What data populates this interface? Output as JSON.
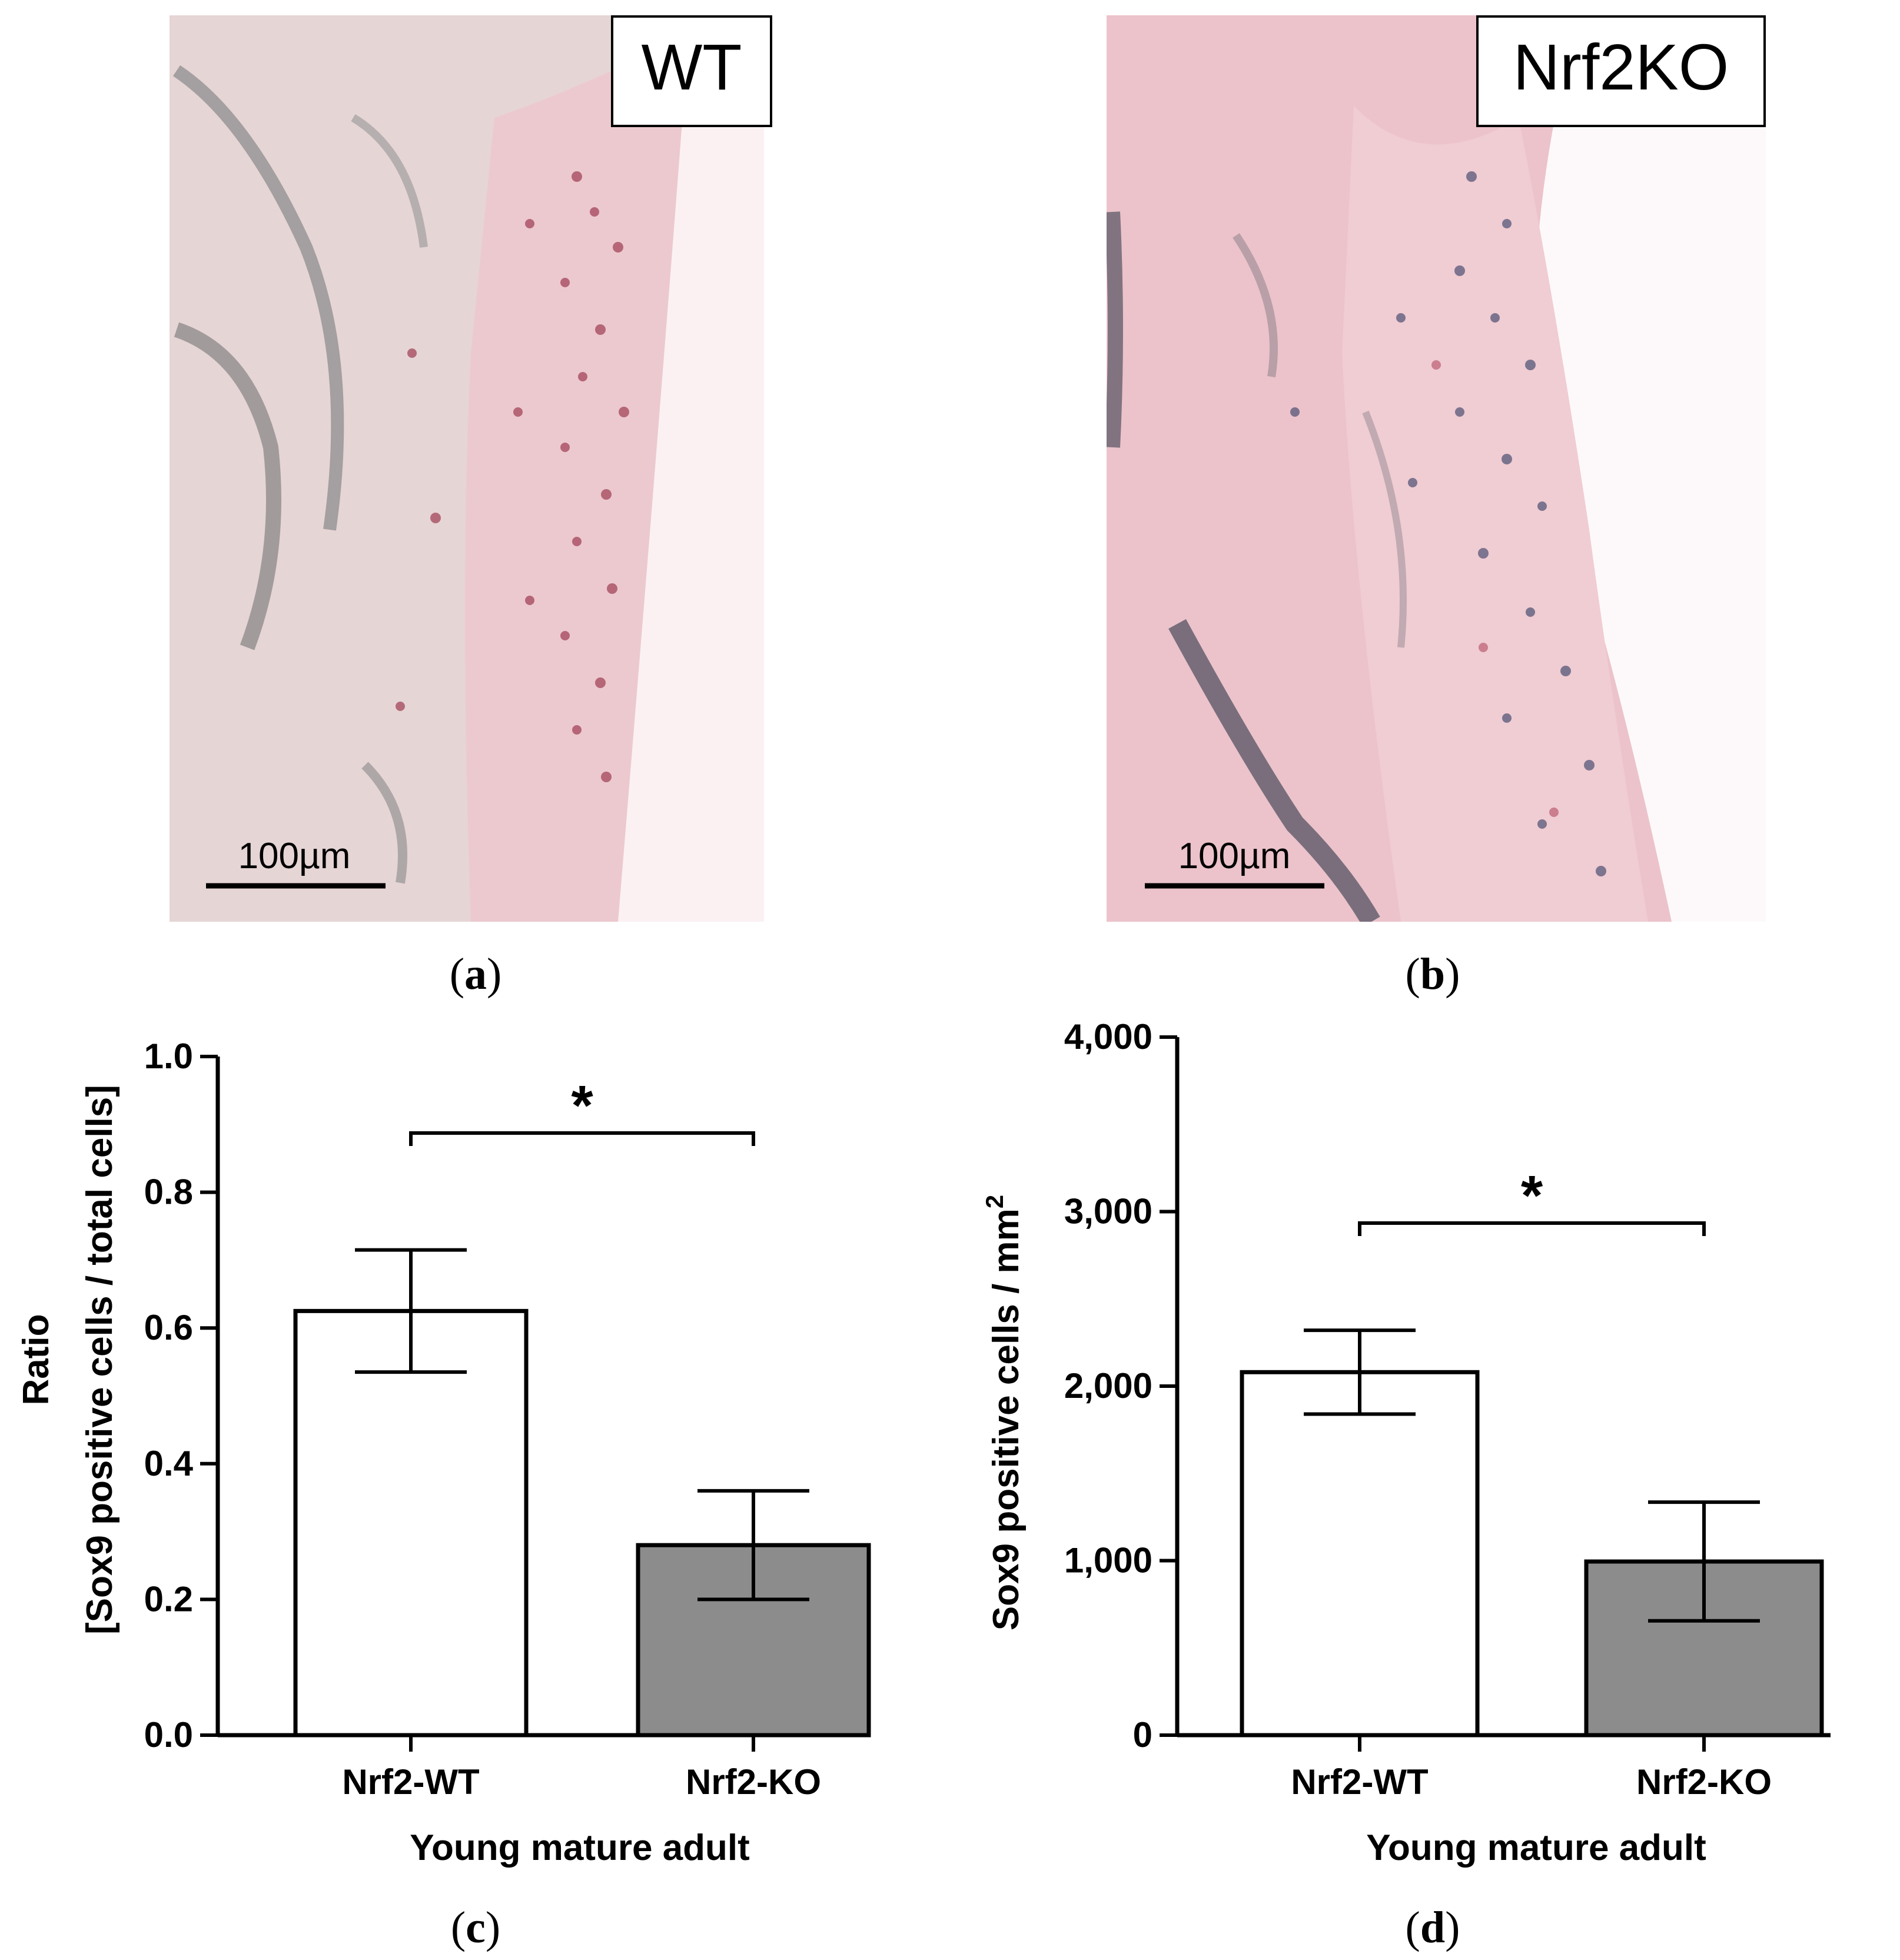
{
  "panels": [
    {
      "letter": "a",
      "badge": "WT",
      "scale_bar": "100µm",
      "image": "histology section stained pink (safranin/hematoxylin), Sox9 immunostaining, wild-type cartilage"
    },
    {
      "letter": "b",
      "badge": "Nrf2KO",
      "scale_bar": "100µm",
      "image": "histology section stained pink (safranin/hematoxylin), Sox9 immunostaining, Nrf2 knockout cartilage"
    }
  ],
  "labels": {
    "c": "c",
    "d": "d"
  },
  "colors": {
    "wt_fill": "#ffffff",
    "ko_fill": "#8c8c8c",
    "stroke": "#000000",
    "tissue": "#ecc3cb"
  },
  "chart_data": [
    {
      "type": "bar",
      "panel": "c",
      "categories": [
        "Nrf2-WT",
        "Nrf2-KO"
      ],
      "values": [
        0.625,
        0.28
      ],
      "errors": [
        0.09,
        0.08
      ],
      "ylim": [
        0,
        1.0
      ],
      "yticks": [
        "0.0",
        "0.2",
        "0.4",
        "0.6",
        "0.8",
        "1.0"
      ],
      "ytick_values": [
        0,
        0.2,
        0.4,
        0.6,
        0.8,
        1.0
      ],
      "ylabel_line1": "Ratio",
      "ylabel_line2": "[Sox9 positive cells / total cells]",
      "xlabel": "Young mature adult",
      "significance": "*"
    },
    {
      "type": "bar",
      "panel": "d",
      "categories": [
        "Nrf2-WT",
        "Nrf2-KO"
      ],
      "values": [
        2080,
        995
      ],
      "errors": [
        240,
        340
      ],
      "ylim": [
        0,
        4000
      ],
      "yticks": [
        "0",
        "1,000",
        "2,000",
        "3,000",
        "4,000"
      ],
      "ytick_values": [
        0,
        1000,
        2000,
        3000,
        4000
      ],
      "ylabel": "Sox9 positive cells / mm",
      "ylabel_sup": "2",
      "xlabel": "Young mature adult",
      "significance": "*"
    }
  ]
}
